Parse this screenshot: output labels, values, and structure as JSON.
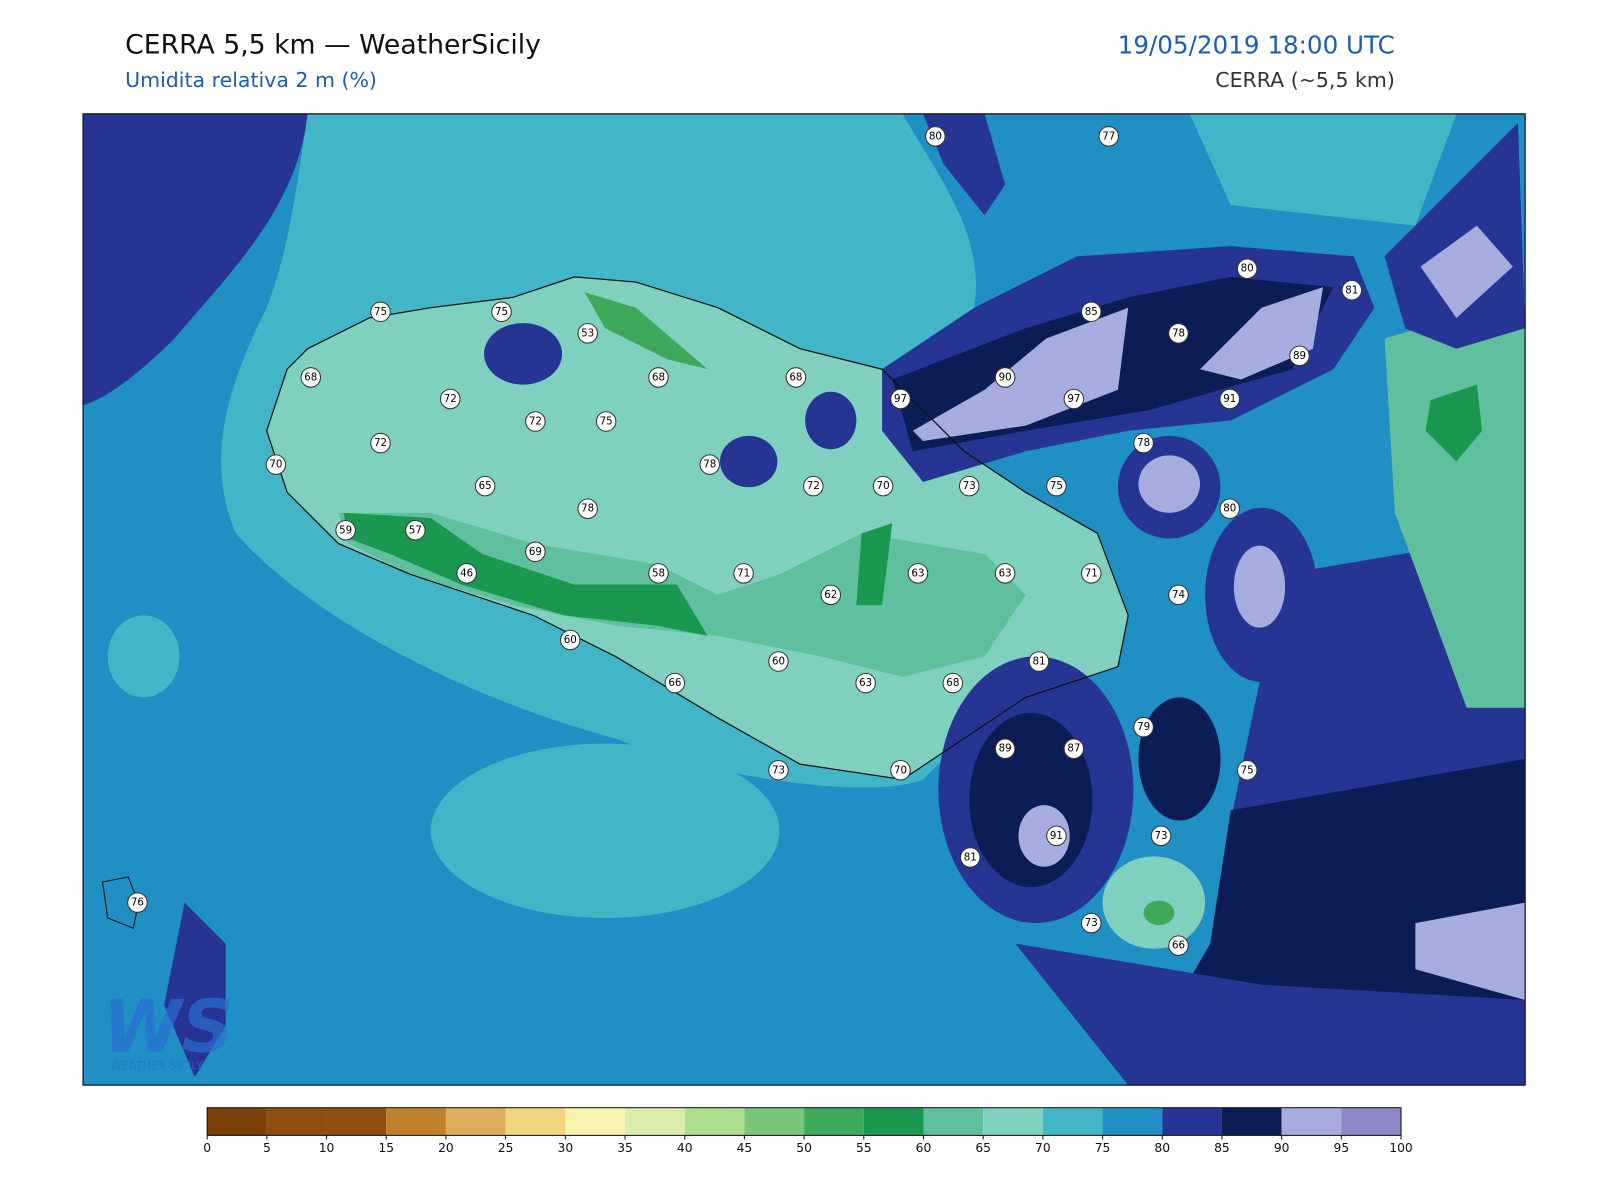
{
  "header": {
    "title": "CERRA 5,5 km — WeatherSicily",
    "subtitle": "Umidita relativa 2 m (%)",
    "datetime": "19/05/2019 18:00 UTC",
    "model": "CERRA (~5,5 km)"
  },
  "map": {
    "stations": [
      75,
      75,
      53,
      68,
      68,
      68,
      80,
      77,
      80,
      81,
      85,
      78,
      89,
      90,
      97,
      97,
      91,
      72,
      72,
      75,
      72,
      78,
      70,
      78,
      72,
      70,
      73,
      75,
      65,
      78,
      80,
      59,
      57,
      69,
      46,
      58,
      71,
      63,
      63,
      71,
      62,
      74,
      60,
      60,
      81,
      66,
      63,
      68,
      79,
      89,
      87,
      73,
      70,
      75,
      91,
      73,
      81,
      76,
      73,
      66
    ]
  },
  "colorbar": {
    "ticks": [
      0,
      5,
      10,
      15,
      20,
      25,
      30,
      35,
      40,
      45,
      50,
      55,
      60,
      65,
      70,
      75,
      80,
      85,
      90,
      95,
      100
    ],
    "colors": [
      "#7b3f07",
      "#8f4d0f",
      "#8f4d0f",
      "#c0802c",
      "#dfad5c",
      "#f2d57f",
      "#f7f4ae",
      "#d9eeaa",
      "#addf8e",
      "#78c67a",
      "#3fa95b",
      "#1a9850",
      "#5fbf9f",
      "#80d0bf",
      "#42b6c7",
      "#1f8fc4",
      "#263494",
      "#0c1c55",
      "#a6acdd",
      "#8d88c8"
    ]
  },
  "logo": {
    "mark": "WS",
    "text": "WEATHER SICILY"
  }
}
